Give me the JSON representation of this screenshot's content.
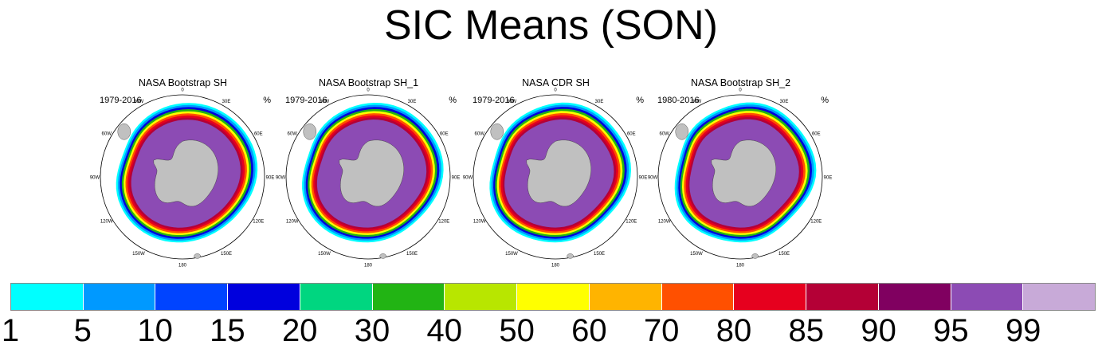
{
  "title": "SIC Means (SON)",
  "panels": [
    {
      "title": "NASA Bootstrap SH",
      "years": "1979-2016",
      "unit": "%"
    },
    {
      "title": "NASA Bootstrap SH_1",
      "years": "1979-2016",
      "unit": "%"
    },
    {
      "title": "NASA CDR SH",
      "years": "1979-2016",
      "unit": "%"
    },
    {
      "title": "NASA Bootstrap SH_2",
      "years": "1980-2016",
      "unit": "%"
    }
  ],
  "longitude_labels": [
    "0",
    "30E",
    "60E",
    "90E",
    "120E",
    "150E",
    "180",
    "150W",
    "120W",
    "90W",
    "60W",
    "30W"
  ],
  "colorbar": {
    "labels": [
      "1",
      "5",
      "10",
      "15",
      "20",
      "30",
      "40",
      "50",
      "60",
      "70",
      "80",
      "85",
      "90",
      "95",
      "99"
    ],
    "colors": [
      "#00ffff",
      "#0099ff",
      "#0044ff",
      "#0000dd",
      "#00d680",
      "#22b414",
      "#b8e600",
      "#ffff00",
      "#ffb400",
      "#ff5000",
      "#e6001e",
      "#b40036",
      "#800060",
      "#8c4bb4",
      "#c8aad8"
    ]
  },
  "colors": {
    "land": "#c0c0c0",
    "ice_core": "#8c4bb4",
    "ocean": "#ffffff"
  }
}
